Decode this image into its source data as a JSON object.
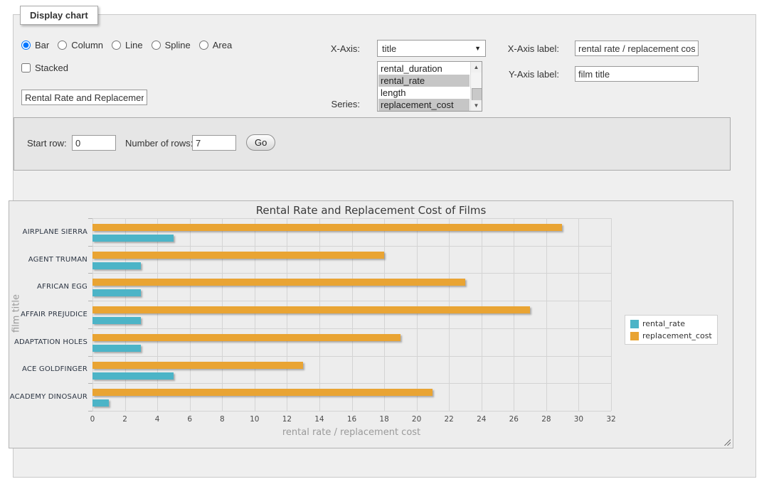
{
  "panel": {
    "legend": "Display chart"
  },
  "chart_type": {
    "options": [
      {
        "label": "Bar",
        "selected": true
      },
      {
        "label": "Column",
        "selected": false
      },
      {
        "label": "Line",
        "selected": false
      },
      {
        "label": "Spline",
        "selected": false
      },
      {
        "label": "Area",
        "selected": false
      }
    ]
  },
  "stacked": {
    "label": "Stacked",
    "checked": false
  },
  "title_input": {
    "value": "Rental Rate and Replacement Cost of Films"
  },
  "x_axis_select": {
    "label": "X-Axis:",
    "selected": "title"
  },
  "series_select": {
    "label": "Series:",
    "options": [
      {
        "label": "rental_duration",
        "selected": false
      },
      {
        "label": "rental_rate",
        "selected": true
      },
      {
        "label": "length",
        "selected": false
      },
      {
        "label": "replacement_cost",
        "selected": true
      }
    ]
  },
  "x_axis_label": {
    "label": "X-Axis label:",
    "value": "rental rate / replacement cost"
  },
  "y_axis_label": {
    "label": "Y-Axis label:",
    "value": "film title"
  },
  "row_controls": {
    "start_row_label": "Start row:",
    "start_row_value": "0",
    "num_rows_label": "Number of rows:",
    "num_rows_value": "7",
    "go_label": "Go"
  },
  "chart_data": {
    "type": "bar",
    "title": "Rental Rate and Replacement Cost of Films",
    "categories": [
      "AIRPLANE SIERRA",
      "AGENT TRUMAN",
      "AFRICAN EGG",
      "AFFAIR PREJUDICE",
      "ADAPTATION HOLES",
      "ACE GOLDFINGER",
      "ACADEMY DINOSAUR"
    ],
    "series": [
      {
        "name": "rental_rate",
        "color": "#4CB4C7",
        "values": [
          4.99,
          2.99,
          2.99,
          2.99,
          2.99,
          4.99,
          0.99
        ]
      },
      {
        "name": "replacement_cost",
        "color": "#E9A433",
        "values": [
          28.99,
          17.99,
          22.99,
          26.99,
          18.99,
          12.99,
          20.99
        ]
      }
    ],
    "xlabel": "rental rate / replacement cost",
    "ylabel": "film title",
    "xlim": [
      0,
      32
    ],
    "x_ticks": [
      0,
      2,
      4,
      6,
      8,
      10,
      12,
      14,
      16,
      18,
      20,
      22,
      24,
      26,
      28,
      30,
      32
    ],
    "grid": true,
    "legend_position": "right",
    "bar_orientation": "horizontal"
  }
}
